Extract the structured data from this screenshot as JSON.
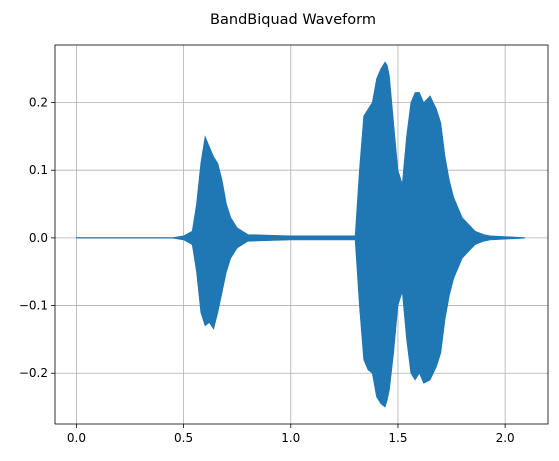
{
  "chart_data": {
    "type": "line",
    "title": "BandBiquad Waveform",
    "xlabel": "",
    "ylabel": "",
    "xlim": [
      -0.1,
      2.2
    ],
    "ylim": [
      -0.275,
      0.285
    ],
    "x_ticks": [
      {
        "value": 0.0,
        "label": "0.0"
      },
      {
        "value": 0.5,
        "label": "0.5"
      },
      {
        "value": 1.0,
        "label": "1.0"
      },
      {
        "value": 1.5,
        "label": "1.5"
      },
      {
        "value": 2.0,
        "label": "2.0"
      }
    ],
    "y_ticks": [
      {
        "value": -0.2,
        "label": "−0.2"
      },
      {
        "value": -0.1,
        "label": "−0.1"
      },
      {
        "value": 0.0,
        "label": "0.0"
      },
      {
        "value": 0.1,
        "label": "0.1"
      },
      {
        "value": 0.2,
        "label": "0.2"
      }
    ],
    "grid": true,
    "series_color": "#1f77b4",
    "series": [
      {
        "envelope_time": [
          0.0,
          0.45,
          0.5,
          0.54,
          0.56,
          0.58,
          0.6,
          0.62,
          0.64,
          0.66,
          0.68,
          0.7,
          0.72,
          0.75,
          0.8,
          0.9,
          1.0,
          1.1,
          1.2,
          1.3,
          1.32,
          1.34,
          1.36,
          1.38,
          1.4,
          1.42,
          1.44,
          1.45,
          1.46,
          1.48,
          1.5,
          1.52,
          1.54,
          1.56,
          1.58,
          1.6,
          1.62,
          1.65,
          1.68,
          1.7,
          1.72,
          1.74,
          1.76,
          1.78,
          1.8,
          1.83,
          1.86,
          1.9,
          1.93,
          2.09
        ],
        "envelope_upper": [
          0.0005,
          0.0005,
          0.003,
          0.01,
          0.05,
          0.11,
          0.15,
          0.135,
          0.12,
          0.11,
          0.085,
          0.05,
          0.03,
          0.015,
          0.005,
          0.004,
          0.003,
          0.003,
          0.003,
          0.003,
          0.1,
          0.18,
          0.19,
          0.2,
          0.235,
          0.25,
          0.26,
          0.255,
          0.24,
          0.17,
          0.1,
          0.08,
          0.15,
          0.2,
          0.215,
          0.215,
          0.2,
          0.21,
          0.19,
          0.17,
          0.12,
          0.085,
          0.06,
          0.045,
          0.03,
          0.02,
          0.01,
          0.005,
          0.003,
          0.0005
        ],
        "envelope_lower": [
          -0.0005,
          -0.0005,
          -0.003,
          -0.01,
          -0.05,
          -0.11,
          -0.13,
          -0.125,
          -0.135,
          -0.11,
          -0.08,
          -0.05,
          -0.03,
          -0.015,
          -0.005,
          -0.004,
          -0.003,
          -0.003,
          -0.003,
          -0.003,
          -0.1,
          -0.18,
          -0.195,
          -0.2,
          -0.235,
          -0.245,
          -0.25,
          -0.24,
          -0.225,
          -0.17,
          -0.1,
          -0.08,
          -0.15,
          -0.2,
          -0.21,
          -0.2,
          -0.215,
          -0.21,
          -0.19,
          -0.17,
          -0.12,
          -0.085,
          -0.06,
          -0.045,
          -0.03,
          -0.02,
          -0.01,
          -0.005,
          -0.003,
          -0.0005
        ]
      }
    ]
  }
}
